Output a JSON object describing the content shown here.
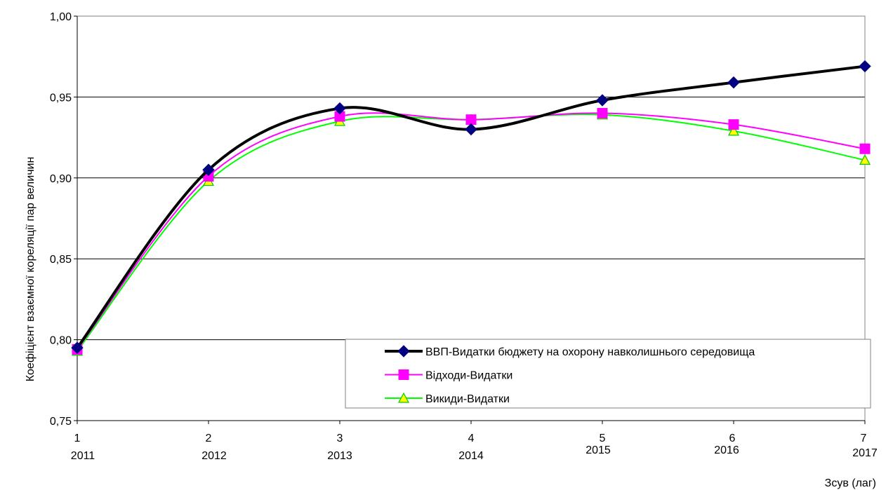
{
  "chart_data": {
    "type": "line",
    "title": "",
    "xlabel": "Зсув (лаг)",
    "ylabel": "Коефіцієнт взаємної кореляції пар величин",
    "x_lags": [
      "1",
      "2",
      "3",
      "4",
      "5",
      "6",
      "7"
    ],
    "x_years": [
      "2011",
      "2012",
      "2013",
      "2014",
      "2015",
      "2016",
      "2017"
    ],
    "ylim": [
      0.75,
      1.0
    ],
    "yticks": [
      0.75,
      0.8,
      0.85,
      0.9,
      0.95,
      1.0
    ],
    "ytick_labels": [
      "0,75",
      "0,80",
      "0,85",
      "0,90",
      "0,95",
      "1,00"
    ],
    "grid": "horizontal",
    "legend_position": "bottom-right",
    "series": [
      {
        "name": "ВВП-Видатки бюджету на охорону навколишнього середовища",
        "values": [
          0.795,
          0.905,
          0.943,
          0.93,
          0.948,
          0.959,
          0.969
        ],
        "color": "#000000",
        "marker": "diamond",
        "marker_color": "#000080"
      },
      {
        "name": "Відходи-Видатки",
        "values": [
          0.794,
          0.901,
          0.938,
          0.936,
          0.94,
          0.933,
          0.918
        ],
        "color": "#ff00ff",
        "marker": "square",
        "marker_color": "#ff00ff"
      },
      {
        "name": "Викиди-Видатки",
        "values": [
          0.793,
          0.898,
          0.935,
          0.936,
          0.939,
          0.929,
          0.911
        ],
        "color": "#00ff00",
        "marker": "triangle",
        "marker_color": "#ffff00"
      }
    ]
  }
}
